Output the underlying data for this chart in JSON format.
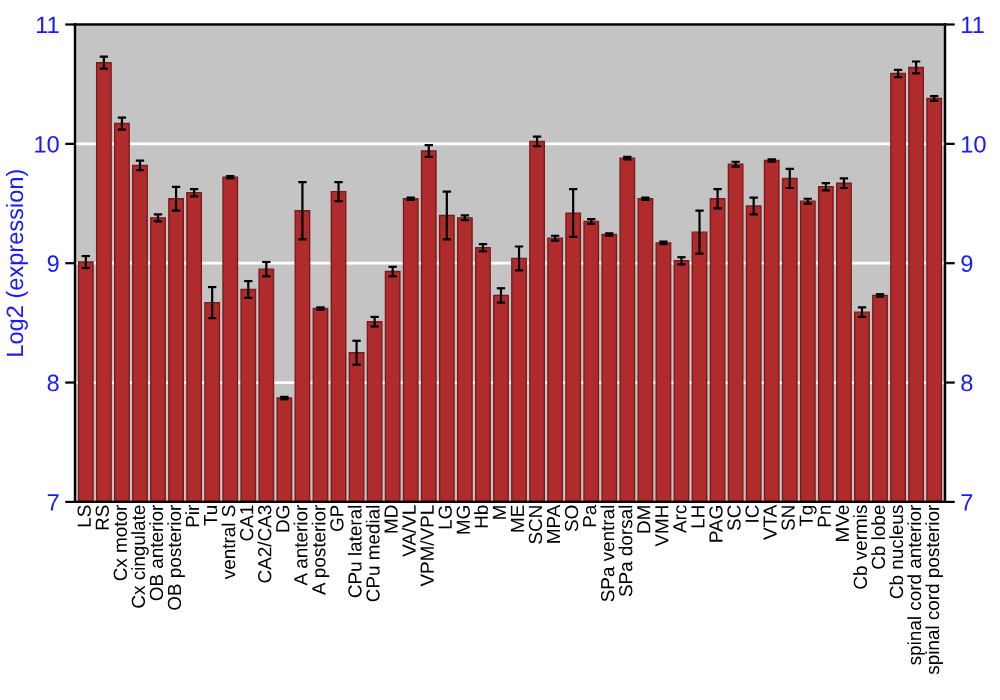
{
  "chart_data": {
    "type": "bar",
    "ylabel": "Log2 (expression)",
    "categories": [
      "LS",
      "RS",
      "Cx motor",
      "Cx cingulate",
      "OB anterior",
      "OB posterior",
      "Pir",
      "Tu",
      "ventral S",
      "CA1",
      "CA2/CA3",
      "DG",
      "A anterior",
      "A posterior",
      "GP",
      "CPu lateral",
      "CPu medial",
      "MD",
      "VA/VL",
      "VPM/VPL",
      "LG",
      "MG",
      "Hb",
      "M",
      "ME",
      "SCN",
      "MPA",
      "SO",
      "Pa",
      "SPa ventral",
      "SPa dorsal",
      "DM",
      "VMH",
      "Arc",
      "LH",
      "PAG",
      "SC",
      "IC",
      "VTA",
      "SN",
      "Tg",
      "Pn",
      "MVe",
      "Cb vermis",
      "Cb lobe",
      "Cb nucleus",
      "spinal cord anterior",
      "spinal cord posterior"
    ],
    "values": [
      9.01,
      10.68,
      10.17,
      9.82,
      9.38,
      9.54,
      9.59,
      8.67,
      9.72,
      8.78,
      8.95,
      7.87,
      9.44,
      8.62,
      9.6,
      8.25,
      8.51,
      8.93,
      9.54,
      9.94,
      9.4,
      9.38,
      9.13,
      8.73,
      9.04,
      10.02,
      9.21,
      9.42,
      9.35,
      9.24,
      9.88,
      9.54,
      9.17,
      9.02,
      9.26,
      9.54,
      9.83,
      9.48,
      9.86,
      9.71,
      9.52,
      9.64,
      9.67,
      8.59,
      8.73,
      10.59,
      10.64,
      10.38
    ],
    "errors": [
      0.05,
      0.05,
      0.05,
      0.04,
      0.03,
      0.1,
      0.03,
      0.13,
      0.01,
      0.07,
      0.06,
      0.01,
      0.24,
      0.01,
      0.08,
      0.1,
      0.04,
      0.04,
      0.01,
      0.05,
      0.2,
      0.02,
      0.03,
      0.06,
      0.1,
      0.04,
      0.02,
      0.2,
      0.02,
      0.01,
      0.01,
      0.01,
      0.01,
      0.03,
      0.18,
      0.08,
      0.02,
      0.07,
      0.01,
      0.08,
      0.02,
      0.03,
      0.04,
      0.04,
      0.01,
      0.03,
      0.05,
      0.02
    ],
    "color": "#b02c2c",
    "ylim": [
      7,
      11
    ],
    "yticks": [
      7,
      8,
      9,
      10,
      11
    ],
    "y2lim": [
      7,
      11
    ],
    "y2ticks": [
      7,
      8,
      9,
      10,
      11
    ],
    "grid": "y"
  }
}
